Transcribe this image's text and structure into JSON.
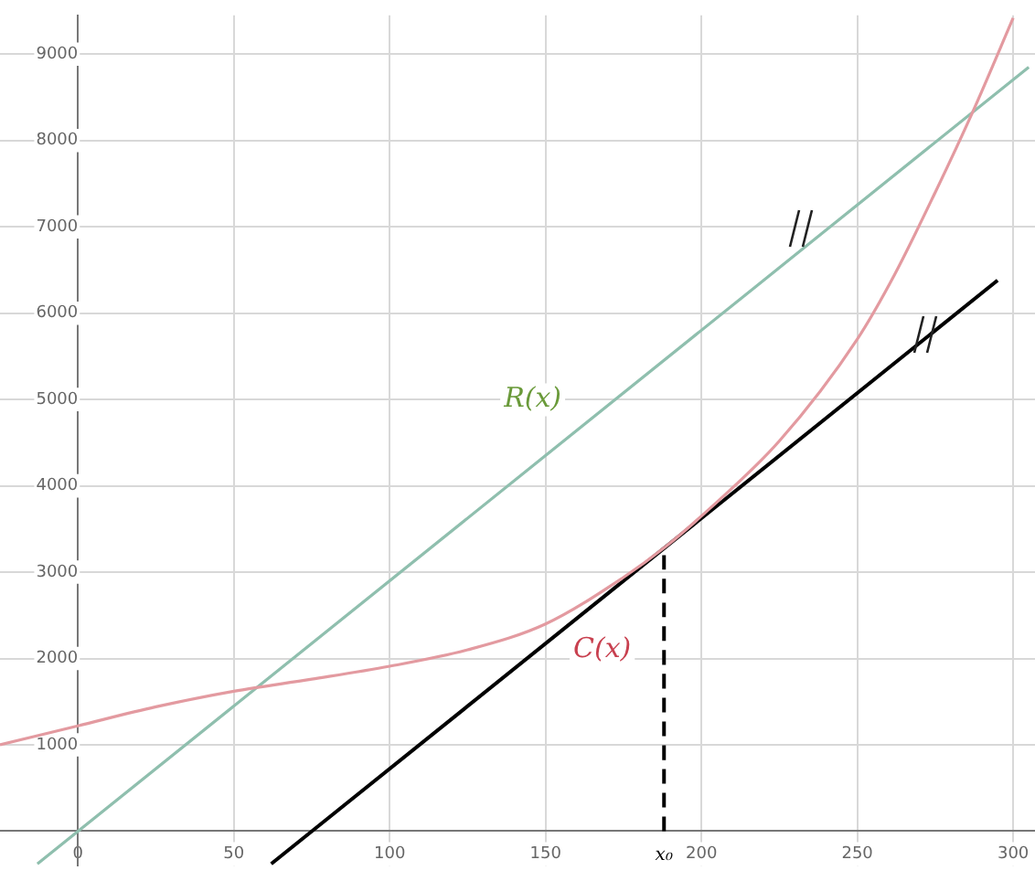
{
  "chart_data": {
    "type": "line",
    "xlim": [
      -25,
      307
    ],
    "ylim": [
      -400,
      9450
    ],
    "xticks": [
      0,
      50,
      100,
      150,
      {
        "value": 188,
        "label": "x₀"
      },
      200,
      250,
      300
    ],
    "yticks": [
      1000,
      2000,
      3000,
      4000,
      5000,
      6000,
      7000,
      8000,
      9000
    ],
    "grid": true,
    "legend": false,
    "marker": "none",
    "series": [
      {
        "name": "C(x)",
        "color": "#e39aa0",
        "x": [
          -25,
          0,
          25,
          50,
          75,
          100,
          125,
          150,
          175,
          188,
          200,
          225,
          250,
          262,
          275,
          287,
          300
        ],
        "values": [
          1000,
          1220,
          1440,
          1620,
          1760,
          1910,
          2100,
          2400,
          2940,
          3280,
          3650,
          4520,
          5700,
          6450,
          7400,
          8330,
          9420
        ]
      },
      {
        "name": "R(x)",
        "color": "#8fbfae",
        "x": [
          -13,
          305
        ],
        "values": [
          -380,
          8850
        ]
      },
      {
        "color": "#000000",
        "x": [
          62,
          295
        ],
        "values": [
          -380,
          6380
        ]
      },
      {
        "color": "#000000",
        "x": [
          188,
          188
        ],
        "values": [
          0,
          3280
        ],
        "line_style": "dashed"
      }
    ]
  }
}
